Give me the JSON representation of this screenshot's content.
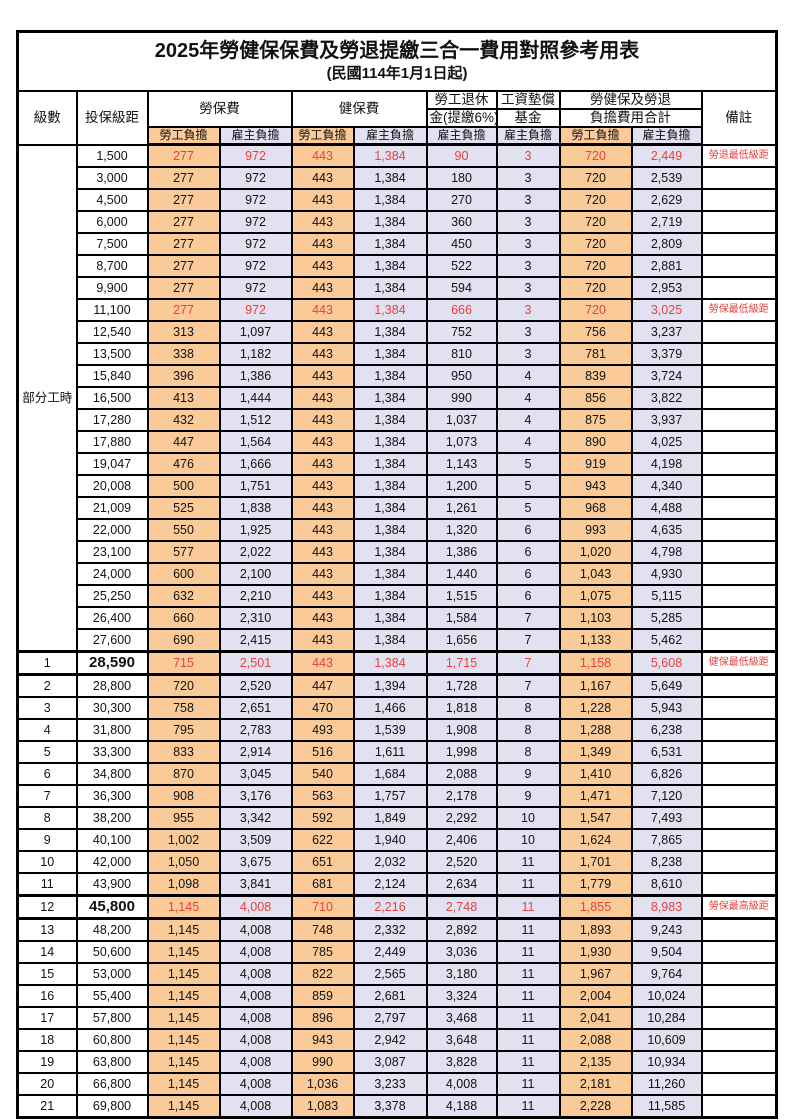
{
  "title": "2025年勞健保保費及勞退提繳三合一費用對照參考用表",
  "subtitle": "(民國114年1月1日起)",
  "colors": {
    "employee_bg": "#FACB99",
    "employer_bg": "#E2E1F2",
    "highlight_red": "#E8403C",
    "border": "#000000"
  },
  "header": {
    "level": "級數",
    "bracket": "投保級距",
    "labor_insurance": "勞保費",
    "health_insurance": "健保費",
    "pension_line1": "勞工退休",
    "pension_line2": "金(提繳6%)",
    "fund_line1": "工資墊償",
    "fund_line2": "基金",
    "total_line1": "勞健保及勞退",
    "total_line2": "負擔費用合計",
    "note": "備註",
    "employee": "勞工負擔",
    "employer": "雇主負擔"
  },
  "group_label": "部分工時",
  "group_span": 23,
  "rows": [
    {
      "lv": "",
      "br": "1,500",
      "li_emp": "277",
      "li_er": "972",
      "hi_emp": "443",
      "hi_er": "1,384",
      "pen": "90",
      "fund": "3",
      "sum_emp": "720",
      "sum_er": "2,449",
      "note": "勞退最低級距",
      "red": true
    },
    {
      "lv": "",
      "br": "3,000",
      "li_emp": "277",
      "li_er": "972",
      "hi_emp": "443",
      "hi_er": "1,384",
      "pen": "180",
      "fund": "3",
      "sum_emp": "720",
      "sum_er": "2,539",
      "note": ""
    },
    {
      "lv": "",
      "br": "4,500",
      "li_emp": "277",
      "li_er": "972",
      "hi_emp": "443",
      "hi_er": "1,384",
      "pen": "270",
      "fund": "3",
      "sum_emp": "720",
      "sum_er": "2,629",
      "note": ""
    },
    {
      "lv": "",
      "br": "6,000",
      "li_emp": "277",
      "li_er": "972",
      "hi_emp": "443",
      "hi_er": "1,384",
      "pen": "360",
      "fund": "3",
      "sum_emp": "720",
      "sum_er": "2,719",
      "note": ""
    },
    {
      "lv": "",
      "br": "7,500",
      "li_emp": "277",
      "li_er": "972",
      "hi_emp": "443",
      "hi_er": "1,384",
      "pen": "450",
      "fund": "3",
      "sum_emp": "720",
      "sum_er": "2,809",
      "note": ""
    },
    {
      "lv": "",
      "br": "8,700",
      "li_emp": "277",
      "li_er": "972",
      "hi_emp": "443",
      "hi_er": "1,384",
      "pen": "522",
      "fund": "3",
      "sum_emp": "720",
      "sum_er": "2,881",
      "note": ""
    },
    {
      "lv": "",
      "br": "9,900",
      "li_emp": "277",
      "li_er": "972",
      "hi_emp": "443",
      "hi_er": "1,384",
      "pen": "594",
      "fund": "3",
      "sum_emp": "720",
      "sum_er": "2,953",
      "note": ""
    },
    {
      "lv": "",
      "br": "11,100",
      "li_emp": "277",
      "li_er": "972",
      "hi_emp": "443",
      "hi_er": "1,384",
      "pen": "666",
      "fund": "3",
      "sum_emp": "720",
      "sum_er": "3,025",
      "note": "勞保最低級距",
      "red": true
    },
    {
      "lv": "",
      "br": "12,540",
      "li_emp": "313",
      "li_er": "1,097",
      "hi_emp": "443",
      "hi_er": "1,384",
      "pen": "752",
      "fund": "3",
      "sum_emp": "756",
      "sum_er": "3,237",
      "note": ""
    },
    {
      "lv": "",
      "br": "13,500",
      "li_emp": "338",
      "li_er": "1,182",
      "hi_emp": "443",
      "hi_er": "1,384",
      "pen": "810",
      "fund": "3",
      "sum_emp": "781",
      "sum_er": "3,379",
      "note": ""
    },
    {
      "lv": "",
      "br": "15,840",
      "li_emp": "396",
      "li_er": "1,386",
      "hi_emp": "443",
      "hi_er": "1,384",
      "pen": "950",
      "fund": "4",
      "sum_emp": "839",
      "sum_er": "3,724",
      "note": ""
    },
    {
      "lv": "",
      "br": "16,500",
      "li_emp": "413",
      "li_er": "1,444",
      "hi_emp": "443",
      "hi_er": "1,384",
      "pen": "990",
      "fund": "4",
      "sum_emp": "856",
      "sum_er": "3,822",
      "note": ""
    },
    {
      "lv": "",
      "br": "17,280",
      "li_emp": "432",
      "li_er": "1,512",
      "hi_emp": "443",
      "hi_er": "1,384",
      "pen": "1,037",
      "fund": "4",
      "sum_emp": "875",
      "sum_er": "3,937",
      "note": ""
    },
    {
      "lv": "",
      "br": "17,880",
      "li_emp": "447",
      "li_er": "1,564",
      "hi_emp": "443",
      "hi_er": "1,384",
      "pen": "1,073",
      "fund": "4",
      "sum_emp": "890",
      "sum_er": "4,025",
      "note": ""
    },
    {
      "lv": "",
      "br": "19,047",
      "li_emp": "476",
      "li_er": "1,666",
      "hi_emp": "443",
      "hi_er": "1,384",
      "pen": "1,143",
      "fund": "5",
      "sum_emp": "919",
      "sum_er": "4,198",
      "note": ""
    },
    {
      "lv": "",
      "br": "20,008",
      "li_emp": "500",
      "li_er": "1,751",
      "hi_emp": "443",
      "hi_er": "1,384",
      "pen": "1,200",
      "fund": "5",
      "sum_emp": "943",
      "sum_er": "4,340",
      "note": ""
    },
    {
      "lv": "",
      "br": "21,009",
      "li_emp": "525",
      "li_er": "1,838",
      "hi_emp": "443",
      "hi_er": "1,384",
      "pen": "1,261",
      "fund": "5",
      "sum_emp": "968",
      "sum_er": "4,488",
      "note": ""
    },
    {
      "lv": "",
      "br": "22,000",
      "li_emp": "550",
      "li_er": "1,925",
      "hi_emp": "443",
      "hi_er": "1,384",
      "pen": "1,320",
      "fund": "6",
      "sum_emp": "993",
      "sum_er": "4,635",
      "note": ""
    },
    {
      "lv": "",
      "br": "23,100",
      "li_emp": "577",
      "li_er": "2,022",
      "hi_emp": "443",
      "hi_er": "1,384",
      "pen": "1,386",
      "fund": "6",
      "sum_emp": "1,020",
      "sum_er": "4,798",
      "note": ""
    },
    {
      "lv": "",
      "br": "24,000",
      "li_emp": "600",
      "li_er": "2,100",
      "hi_emp": "443",
      "hi_er": "1,384",
      "pen": "1,440",
      "fund": "6",
      "sum_emp": "1,043",
      "sum_er": "4,930",
      "note": ""
    },
    {
      "lv": "",
      "br": "25,250",
      "li_emp": "632",
      "li_er": "2,210",
      "hi_emp": "443",
      "hi_er": "1,384",
      "pen": "1,515",
      "fund": "6",
      "sum_emp": "1,075",
      "sum_er": "5,115",
      "note": ""
    },
    {
      "lv": "",
      "br": "26,400",
      "li_emp": "660",
      "li_er": "2,310",
      "hi_emp": "443",
      "hi_er": "1,384",
      "pen": "1,584",
      "fund": "7",
      "sum_emp": "1,103",
      "sum_er": "5,285",
      "note": ""
    },
    {
      "lv": "",
      "br": "27,600",
      "li_emp": "690",
      "li_er": "2,415",
      "hi_emp": "443",
      "hi_er": "1,384",
      "pen": "1,656",
      "fund": "7",
      "sum_emp": "1,133",
      "sum_er": "5,462",
      "note": ""
    },
    {
      "lv": "1",
      "br": "28,590",
      "li_emp": "715",
      "li_er": "2,501",
      "hi_emp": "443",
      "hi_er": "1,384",
      "pen": "1,715",
      "fund": "7",
      "sum_emp": "1,158",
      "sum_er": "5,608",
      "note": "健保最低級距",
      "red": true,
      "big": true,
      "thick": true
    },
    {
      "lv": "2",
      "br": "28,800",
      "li_emp": "720",
      "li_er": "2,520",
      "hi_emp": "447",
      "hi_er": "1,394",
      "pen": "1,728",
      "fund": "7",
      "sum_emp": "1,167",
      "sum_er": "5,649",
      "note": ""
    },
    {
      "lv": "3",
      "br": "30,300",
      "li_emp": "758",
      "li_er": "2,651",
      "hi_emp": "470",
      "hi_er": "1,466",
      "pen": "1,818",
      "fund": "8",
      "sum_emp": "1,228",
      "sum_er": "5,943",
      "note": ""
    },
    {
      "lv": "4",
      "br": "31,800",
      "li_emp": "795",
      "li_er": "2,783",
      "hi_emp": "493",
      "hi_er": "1,539",
      "pen": "1,908",
      "fund": "8",
      "sum_emp": "1,288",
      "sum_er": "6,238",
      "note": ""
    },
    {
      "lv": "5",
      "br": "33,300",
      "li_emp": "833",
      "li_er": "2,914",
      "hi_emp": "516",
      "hi_er": "1,611",
      "pen": "1,998",
      "fund": "8",
      "sum_emp": "1,349",
      "sum_er": "6,531",
      "note": ""
    },
    {
      "lv": "6",
      "br": "34,800",
      "li_emp": "870",
      "li_er": "3,045",
      "hi_emp": "540",
      "hi_er": "1,684",
      "pen": "2,088",
      "fund": "9",
      "sum_emp": "1,410",
      "sum_er": "6,826",
      "note": ""
    },
    {
      "lv": "7",
      "br": "36,300",
      "li_emp": "908",
      "li_er": "3,176",
      "hi_emp": "563",
      "hi_er": "1,757",
      "pen": "2,178",
      "fund": "9",
      "sum_emp": "1,471",
      "sum_er": "7,120",
      "note": ""
    },
    {
      "lv": "8",
      "br": "38,200",
      "li_emp": "955",
      "li_er": "3,342",
      "hi_emp": "592",
      "hi_er": "1,849",
      "pen": "2,292",
      "fund": "10",
      "sum_emp": "1,547",
      "sum_er": "7,493",
      "note": ""
    },
    {
      "lv": "9",
      "br": "40,100",
      "li_emp": "1,002",
      "li_er": "3,509",
      "hi_emp": "622",
      "hi_er": "1,940",
      "pen": "2,406",
      "fund": "10",
      "sum_emp": "1,624",
      "sum_er": "7,865",
      "note": ""
    },
    {
      "lv": "10",
      "br": "42,000",
      "li_emp": "1,050",
      "li_er": "3,675",
      "hi_emp": "651",
      "hi_er": "2,032",
      "pen": "2,520",
      "fund": "11",
      "sum_emp": "1,701",
      "sum_er": "8,238",
      "note": ""
    },
    {
      "lv": "11",
      "br": "43,900",
      "li_emp": "1,098",
      "li_er": "3,841",
      "hi_emp": "681",
      "hi_er": "2,124",
      "pen": "2,634",
      "fund": "11",
      "sum_emp": "1,779",
      "sum_er": "8,610",
      "note": ""
    },
    {
      "lv": "12",
      "br": "45,800",
      "li_emp": "1,145",
      "li_er": "4,008",
      "hi_emp": "710",
      "hi_er": "2,216",
      "pen": "2,748",
      "fund": "11",
      "sum_emp": "1,855",
      "sum_er": "8,983",
      "note": "勞保最高級距",
      "red": true,
      "big": true,
      "thick": true
    },
    {
      "lv": "13",
      "br": "48,200",
      "li_emp": "1,145",
      "li_er": "4,008",
      "hi_emp": "748",
      "hi_er": "2,332",
      "pen": "2,892",
      "fund": "11",
      "sum_emp": "1,893",
      "sum_er": "9,243",
      "note": ""
    },
    {
      "lv": "14",
      "br": "50,600",
      "li_emp": "1,145",
      "li_er": "4,008",
      "hi_emp": "785",
      "hi_er": "2,449",
      "pen": "3,036",
      "fund": "11",
      "sum_emp": "1,930",
      "sum_er": "9,504",
      "note": ""
    },
    {
      "lv": "15",
      "br": "53,000",
      "li_emp": "1,145",
      "li_er": "4,008",
      "hi_emp": "822",
      "hi_er": "2,565",
      "pen": "3,180",
      "fund": "11",
      "sum_emp": "1,967",
      "sum_er": "9,764",
      "note": ""
    },
    {
      "lv": "16",
      "br": "55,400",
      "li_emp": "1,145",
      "li_er": "4,008",
      "hi_emp": "859",
      "hi_er": "2,681",
      "pen": "3,324",
      "fund": "11",
      "sum_emp": "2,004",
      "sum_er": "10,024",
      "note": ""
    },
    {
      "lv": "17",
      "br": "57,800",
      "li_emp": "1,145",
      "li_er": "4,008",
      "hi_emp": "896",
      "hi_er": "2,797",
      "pen": "3,468",
      "fund": "11",
      "sum_emp": "2,041",
      "sum_er": "10,284",
      "note": ""
    },
    {
      "lv": "18",
      "br": "60,800",
      "li_emp": "1,145",
      "li_er": "4,008",
      "hi_emp": "943",
      "hi_er": "2,942",
      "pen": "3,648",
      "fund": "11",
      "sum_emp": "2,088",
      "sum_er": "10,609",
      "note": ""
    },
    {
      "lv": "19",
      "br": "63,800",
      "li_emp": "1,145",
      "li_er": "4,008",
      "hi_emp": "990",
      "hi_er": "3,087",
      "pen": "3,828",
      "fund": "11",
      "sum_emp": "2,135",
      "sum_er": "10,934",
      "note": ""
    },
    {
      "lv": "20",
      "br": "66,800",
      "li_emp": "1,145",
      "li_er": "4,008",
      "hi_emp": "1,036",
      "hi_er": "3,233",
      "pen": "4,008",
      "fund": "11",
      "sum_emp": "2,181",
      "sum_er": "11,260",
      "note": ""
    },
    {
      "lv": "21",
      "br": "69,800",
      "li_emp": "1,145",
      "li_er": "4,008",
      "hi_emp": "1,083",
      "hi_er": "3,378",
      "pen": "4,188",
      "fund": "11",
      "sum_emp": "2,228",
      "sum_er": "11,585",
      "note": ""
    }
  ]
}
